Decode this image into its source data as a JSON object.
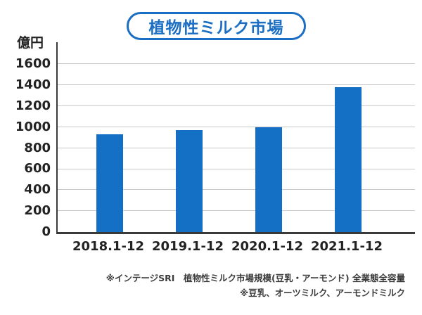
{
  "title": "植物性ミルク市場",
  "chart_data": {
    "type": "bar",
    "title": "植物性ミルク市場",
    "ylabel": "億円",
    "xlabel": "",
    "categories": [
      "2018.1-12",
      "2019.1-12",
      "2020.1-12",
      "2021.1-12"
    ],
    "values": [
      930,
      970,
      1000,
      1380
    ],
    "y_ticks": [
      0,
      200,
      400,
      600,
      800,
      1000,
      1200,
      1400,
      1600
    ],
    "ylim": [
      0,
      1810
    ],
    "grid": true,
    "legend": "none",
    "bar_color": "#1470c4"
  },
  "footnotes": {
    "line1": "※インテージSRI　植物性ミルク市場規模(豆乳・アーモンド) 全業態全容量",
    "line2": "※豆乳、オーツミルク、アーモンドミルク"
  },
  "colors": {
    "accent_blue": "#1a6ec3",
    "bar_blue": "#1470c4",
    "axis": "#3a3a3a",
    "gridline": "#c9c9c9",
    "text": "#222222"
  }
}
